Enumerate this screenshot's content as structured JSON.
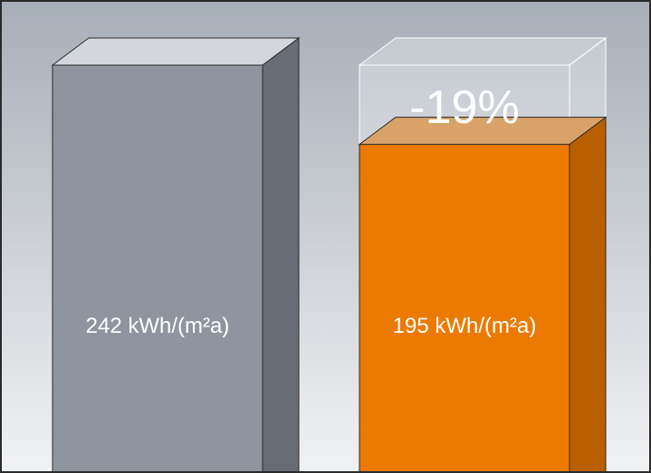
{
  "chart_data": {
    "type": "bar",
    "categories": [
      "",
      ""
    ],
    "values": [
      242,
      195
    ],
    "value_labels": [
      "242 kWh/(m²a)",
      "195 kWh/(m²a)"
    ],
    "annotation": "-19%",
    "unit": "kWh/(m²a)",
    "grid": false,
    "legend": "none",
    "colors": {
      "bar1_front": "#8f959f",
      "bar1_side": "#686c75",
      "bar1_top": "#d3d7dc",
      "bar2_front": "#ec7a00",
      "bar2_side": "#b95f00",
      "bar2_top": "#d9a268",
      "ghost": "#f4f6f9",
      "background_top": "#a7aeb7",
      "background_bottom": "#f1f2f4",
      "text": "#ffffff",
      "border": "#2a2a2a"
    }
  }
}
